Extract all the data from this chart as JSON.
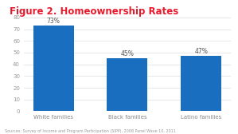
{
  "title": "Figure 2. Homeownership Rates",
  "title_color": "#e8192c",
  "categories": [
    "White families",
    "Black families",
    "Latino families"
  ],
  "values": [
    73,
    45,
    47
  ],
  "labels": [
    "73%",
    "45%",
    "47%"
  ],
  "bar_color": "#1a6ec0",
  "ylim": [
    0,
    80
  ],
  "yticks": [
    0,
    10,
    20,
    30,
    40,
    50,
    60,
    70,
    80
  ],
  "source_text": "Sources: Survey of Income and Program Participation (SIPP), 2008 Panel Wave 10, 2011",
  "background_color": "#ffffff",
  "label_fontsize": 5.5,
  "tick_fontsize": 5.0,
  "title_fontsize": 8.5,
  "source_fontsize": 3.5
}
